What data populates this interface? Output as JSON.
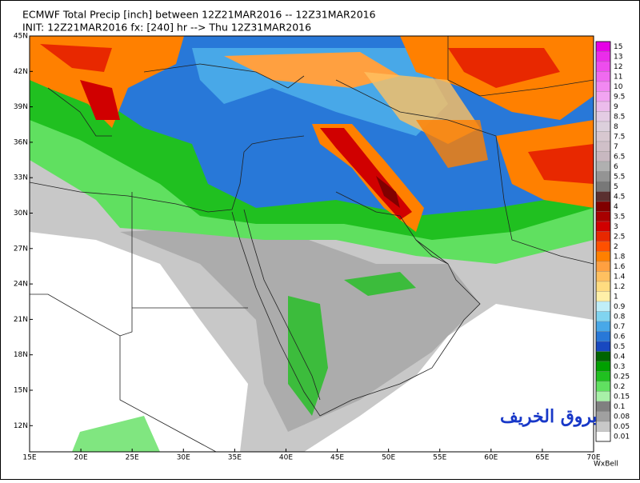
{
  "header": {
    "line1": "ECMWF Total Precip [inch] between 12Z21MAR2016 -- 12Z31MAR2016",
    "line2": "INIT: 12Z21MAR2016 fx: [240] hr --> Thu 12Z31MAR2016"
  },
  "lat_labels": [
    "45N",
    "42N",
    "39N",
    "36N",
    "33N",
    "30N",
    "27N",
    "24N",
    "21N",
    "18N",
    "15N",
    "12N"
  ],
  "lon_labels": [
    "15E",
    "20E",
    "25E",
    "30E",
    "35E",
    "40E",
    "45E",
    "50E",
    "55E",
    "60E",
    "65E",
    "70E"
  ],
  "colorbar": {
    "levels": [
      15,
      13,
      12,
      11,
      10,
      9.5,
      9,
      8.5,
      8,
      7.5,
      7,
      6.5,
      6,
      5.5,
      5,
      4.5,
      4,
      3.5,
      3,
      2.5,
      2,
      1.8,
      1.6,
      1.4,
      1.2,
      1,
      0.9,
      0.8,
      0.7,
      0.6,
      0.5,
      0.4,
      0.3,
      0.25,
      0.2,
      0.15,
      0.1,
      0.08,
      0.05,
      0.01
    ],
    "colors": [
      "#e600e6",
      "#eb2ceb",
      "#ee4cee",
      "#f06af0",
      "#f288f2",
      "#f2a4f2",
      "#ecbcec",
      "#e4cce4",
      "#dcd0dc",
      "#d8c8d0",
      "#d0c0c8",
      "#c8b8c0",
      "#b0b0b0",
      "#949494",
      "#787878",
      "#5a3030",
      "#800000",
      "#a80000",
      "#d00000",
      "#e82800",
      "#ff5000",
      "#ff8000",
      "#ffa040",
      "#ffc060",
      "#ffdc80",
      "#fff0a8",
      "#c0eef8",
      "#80d4f0",
      "#48a8e8",
      "#2878d8",
      "#1848c0",
      "#006400",
      "#00a000",
      "#20c020",
      "#60e060",
      "#a8f0a8",
      "#808080",
      "#a0a0a0",
      "#c8c8c8",
      "#ffffff"
    ]
  },
  "watermark": "بروق الخريف",
  "credit": "WxBell"
}
